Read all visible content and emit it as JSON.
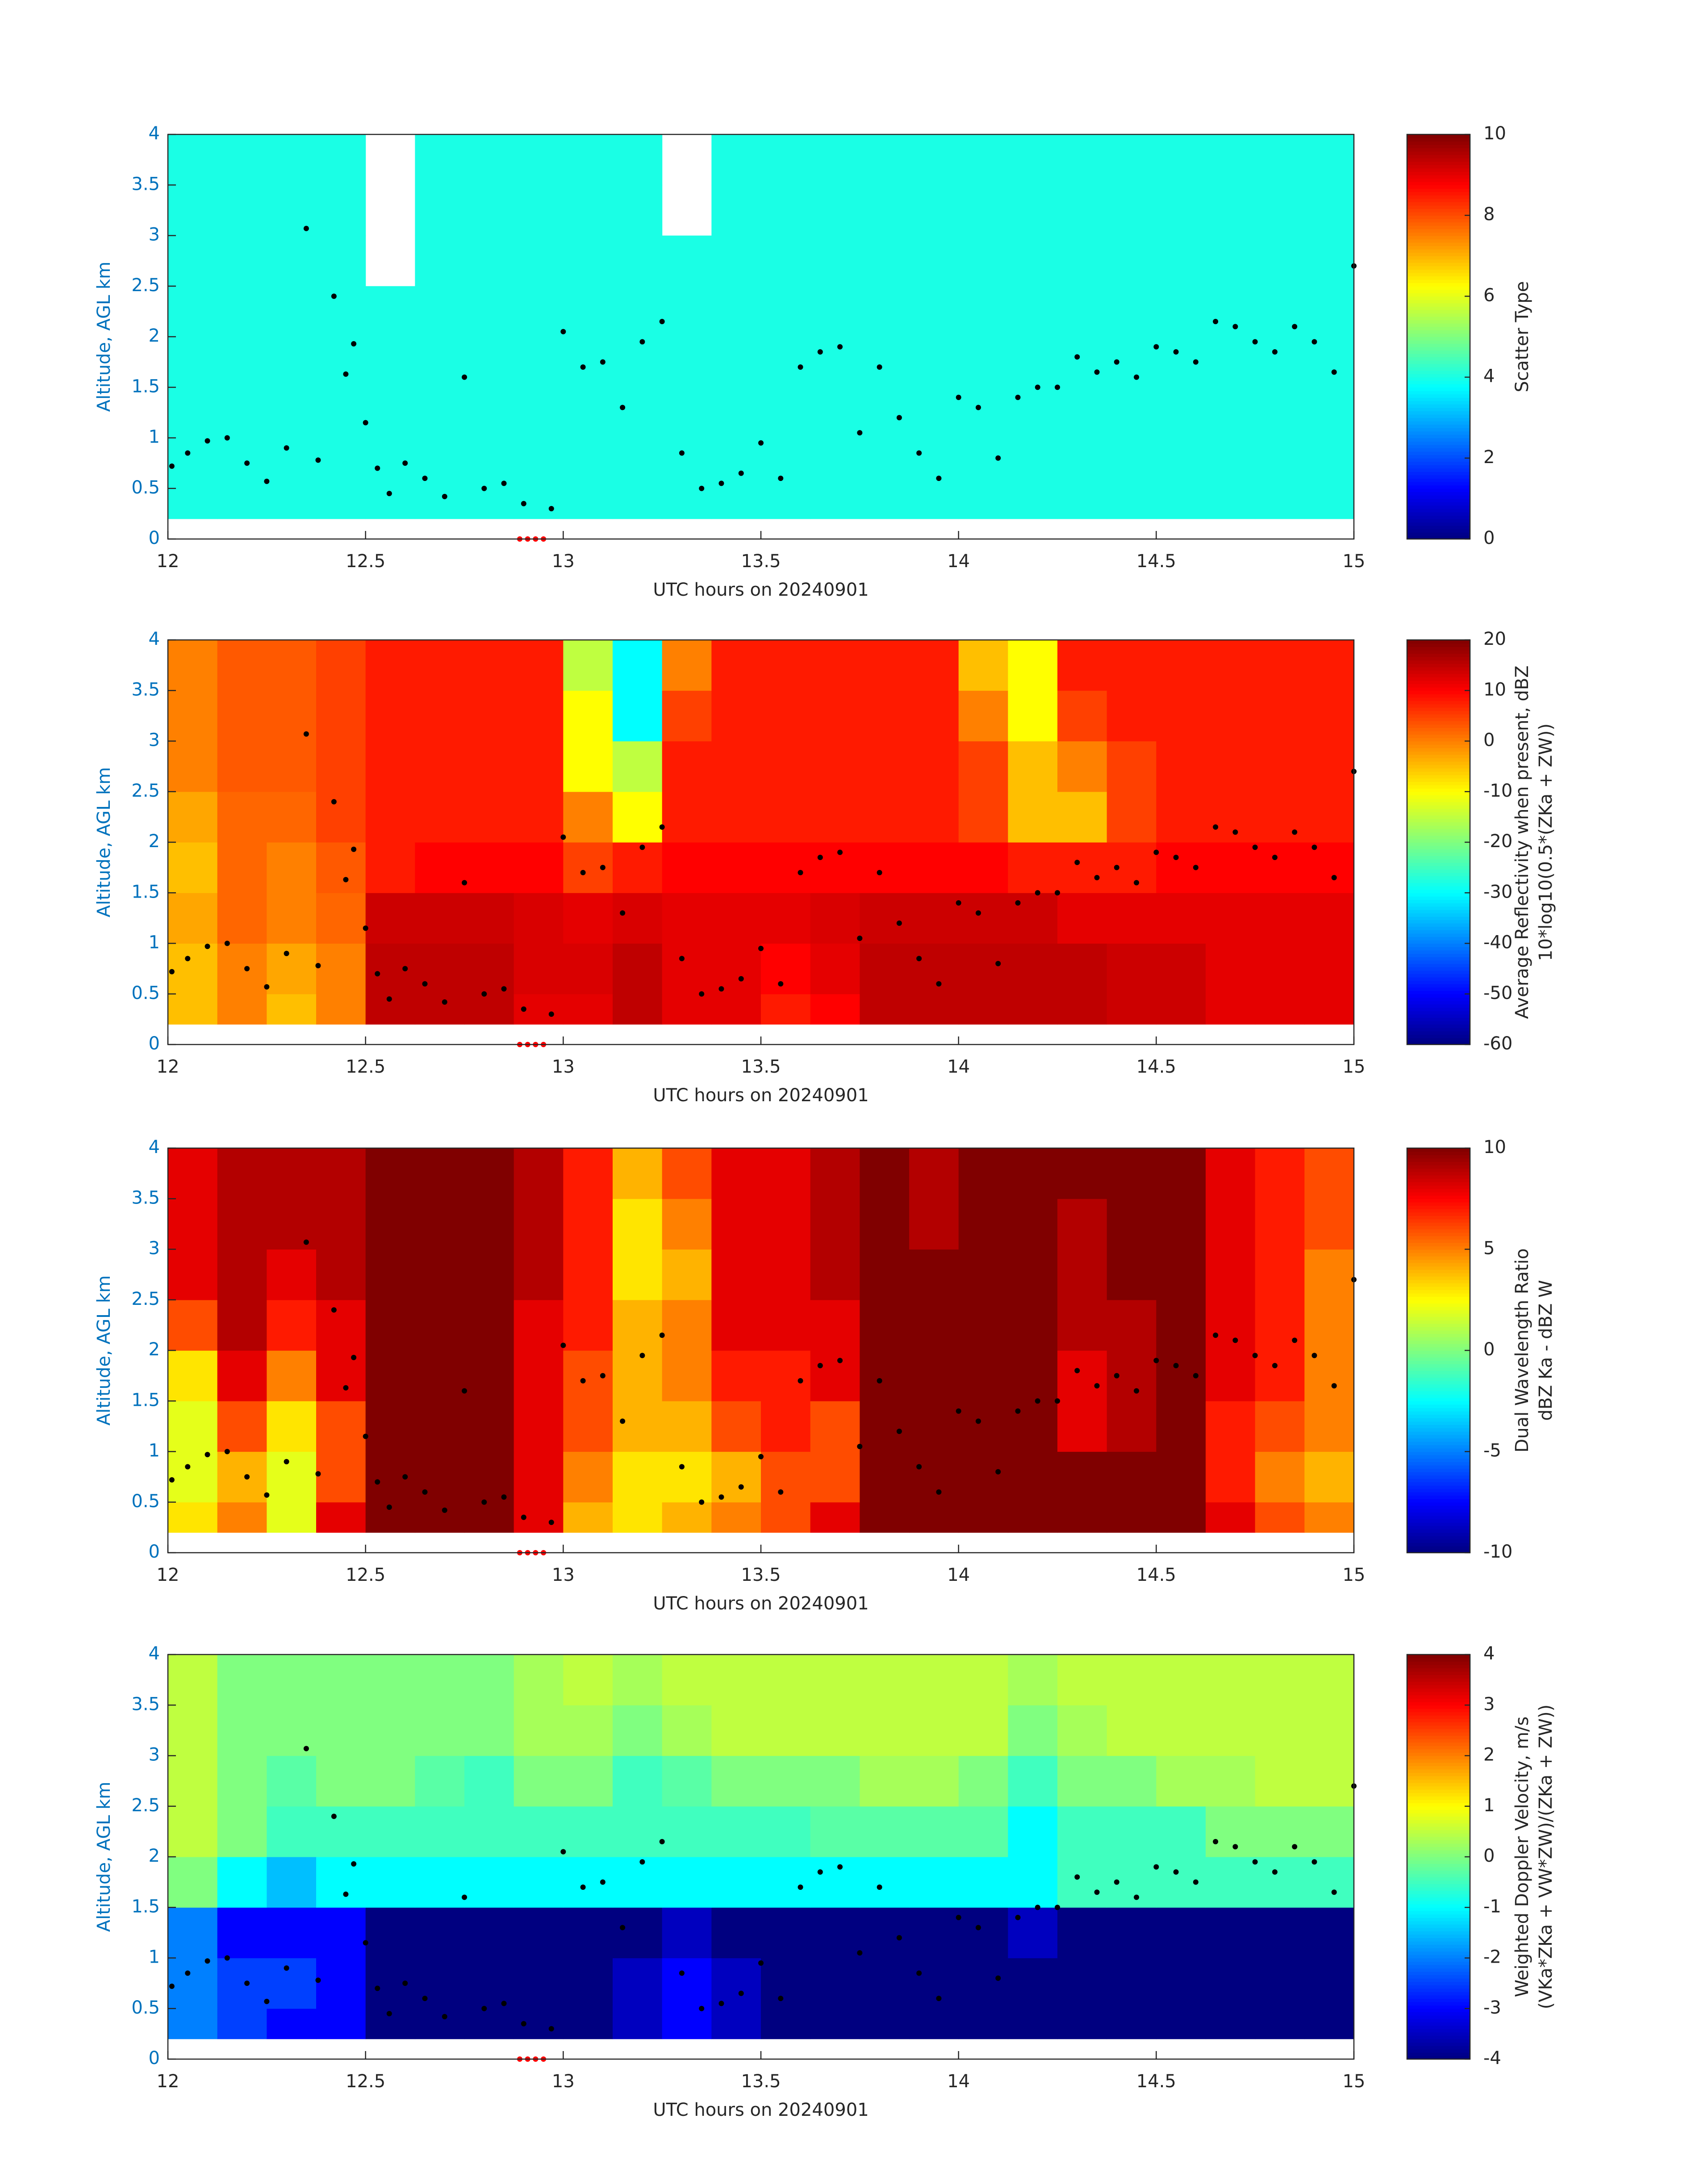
{
  "points": [
    {
      "color": "#000000",
      "x": [
        12.01,
        12.05,
        12.1,
        12.15,
        12.2,
        12.25,
        12.3,
        12.35,
        12.38,
        12.42,
        12.45,
        12.47,
        12.5,
        12.53,
        12.56,
        12.6,
        12.65,
        12.7,
        12.75,
        12.8,
        12.85,
        12.9,
        12.97,
        13.0,
        13.05,
        13.1,
        13.15,
        13.2,
        13.25,
        13.3,
        13.35,
        13.4,
        13.45,
        13.5,
        13.55,
        13.6,
        13.65,
        13.7,
        13.75,
        13.8,
        13.85,
        13.9,
        13.95,
        14.0,
        14.05,
        14.1,
        14.15,
        14.2,
        14.25,
        14.3,
        14.35,
        14.4,
        14.45,
        14.5,
        14.55,
        14.6,
        14.65,
        14.7,
        14.75,
        14.8,
        14.85,
        14.9,
        14.95,
        15.0
      ],
      "y": [
        0.72,
        0.85,
        0.97,
        1.0,
        0.75,
        0.57,
        0.9,
        3.07,
        0.78,
        2.4,
        1.63,
        1.93,
        1.15,
        0.7,
        0.45,
        0.75,
        0.6,
        0.42,
        1.6,
        0.5,
        0.55,
        0.35,
        0.3,
        2.05,
        1.7,
        1.75,
        1.3,
        1.95,
        2.15,
        0.85,
        0.5,
        0.55,
        0.65,
        0.95,
        0.6,
        1.7,
        1.85,
        1.9,
        1.05,
        1.7,
        1.2,
        0.85,
        0.6,
        1.4,
        1.3,
        0.8,
        1.4,
        1.5,
        1.5,
        1.8,
        1.65,
        1.75,
        1.6,
        1.9,
        1.85,
        1.75,
        2.15,
        2.1,
        1.95,
        1.85,
        2.1,
        1.95,
        1.65,
        2.7
      ]
    },
    {
      "color": "#ff0000",
      "x": [
        12.89,
        12.91,
        12.93,
        12.95
      ],
      "y": [
        0,
        0,
        0,
        0
      ]
    }
  ],
  "chart_data": [
    {
      "type": "heatmap",
      "colormap": "jet",
      "xlabel": "UTC hours on 20240901",
      "ylabel": "Altitude, AGL km",
      "colorbar_label": [
        "Scatter Type"
      ],
      "xlim": [
        12,
        15
      ],
      "xticks": [
        12,
        12.5,
        13,
        13.5,
        14,
        14.5,
        15
      ],
      "ylim": [
        0,
        4
      ],
      "yticks": [
        0,
        0.5,
        1,
        1.5,
        2,
        2.5,
        3,
        3.5,
        4
      ],
      "clim": [
        0,
        10
      ],
      "cticks": [
        0,
        2,
        4,
        6,
        8,
        10
      ],
      "x_edges": [
        12,
        12.125,
        12.25,
        12.375,
        12.5,
        12.625,
        12.75,
        12.875,
        13,
        13.125,
        13.25,
        13.375,
        13.5,
        13.625,
        13.75,
        13.875,
        14,
        14.125,
        14.25,
        14.375,
        14.5,
        14.625,
        14.75,
        14.875,
        15
      ],
      "y_edges": [
        0.2,
        0.5,
        1,
        1.5,
        2,
        2.5,
        3,
        3.5,
        4
      ],
      "values": [
        [
          4,
          4,
          4,
          4,
          4,
          4,
          4,
          4,
          4,
          4,
          4,
          4,
          4,
          4,
          4,
          4,
          4,
          4,
          4,
          4,
          4,
          4,
          4,
          4
        ],
        [
          4,
          4,
          4,
          4,
          4,
          4,
          4,
          4,
          4,
          4,
          4,
          4,
          4,
          4,
          4,
          4,
          4,
          4,
          4,
          4,
          4,
          4,
          4,
          4
        ],
        [
          4,
          4,
          4,
          4,
          4,
          4,
          4,
          4,
          4,
          4,
          4,
          4,
          4,
          4,
          4,
          4,
          4,
          4,
          4,
          4,
          4,
          4,
          4,
          4
        ],
        [
          4,
          4,
          4,
          4,
          4,
          4,
          4,
          4,
          4,
          4,
          4,
          4,
          4,
          4,
          4,
          4,
          4,
          4,
          4,
          4,
          4,
          4,
          4,
          4
        ],
        [
          4,
          4,
          4,
          4,
          4,
          4,
          4,
          4,
          4,
          4,
          4,
          4,
          4,
          4,
          4,
          4,
          4,
          4,
          4,
          4,
          4,
          4,
          4,
          4
        ],
        [
          4,
          4,
          4,
          4,
          null,
          4,
          4,
          4,
          4,
          4,
          4,
          4,
          4,
          4,
          4,
          4,
          4,
          4,
          4,
          4,
          4,
          4,
          4,
          4
        ],
        [
          4,
          4,
          4,
          4,
          null,
          4,
          4,
          4,
          4,
          4,
          null,
          4,
          4,
          4,
          4,
          4,
          4,
          4,
          4,
          4,
          4,
          4,
          4,
          4
        ],
        [
          4,
          4,
          4,
          4,
          null,
          4,
          4,
          4,
          4,
          4,
          null,
          4,
          4,
          4,
          4,
          4,
          4,
          4,
          4,
          4,
          4,
          4,
          4,
          4
        ]
      ]
    },
    {
      "type": "heatmap",
      "colormap": "jet",
      "xlabel": "UTC hours on 20240901",
      "ylabel": "Altitude, AGL km",
      "colorbar_label": [
        "Average Reflectivity when present, dBZ",
        "10*log10(0.5*(ZKa + ZW))"
      ],
      "xlim": [
        12,
        15
      ],
      "xticks": [
        12,
        12.5,
        13,
        13.5,
        14,
        14.5,
        15
      ],
      "ylim": [
        0,
        4
      ],
      "yticks": [
        0,
        0.5,
        1,
        1.5,
        2,
        2.5,
        3,
        3.5,
        4
      ],
      "clim": [
        -60,
        20
      ],
      "cticks": [
        -60,
        -50,
        -40,
        -30,
        -20,
        -10,
        0,
        10,
        20
      ],
      "x_edges": [
        12,
        12.125,
        12.25,
        12.375,
        12.5,
        12.625,
        12.75,
        12.875,
        13,
        13.125,
        13.25,
        13.375,
        13.5,
        13.625,
        13.75,
        13.875,
        14,
        14.125,
        14.25,
        14.375,
        14.5,
        14.625,
        14.75,
        14.875,
        15
      ],
      "y_edges": [
        0.2,
        0.5,
        1,
        1.5,
        2,
        2.5,
        3,
        3.5,
        4
      ],
      "values": [
        [
          -5,
          0,
          -5,
          0,
          15,
          15,
          15,
          12,
          12,
          15,
          12,
          12,
          8,
          10,
          15,
          15,
          15,
          15,
          15,
          14,
          14,
          12,
          12,
          12
        ],
        [
          -5,
          0,
          -3,
          0,
          15,
          15,
          15,
          13,
          13,
          15,
          12,
          12,
          10,
          12,
          15,
          15,
          15,
          15,
          15,
          14,
          14,
          12,
          12,
          12
        ],
        [
          -3,
          2,
          0,
          2,
          14,
          14,
          14,
          13,
          12,
          13,
          12,
          12,
          12,
          13,
          14,
          14,
          14,
          14,
          12,
          12,
          12,
          12,
          12,
          12
        ],
        [
          -5,
          2,
          0,
          3,
          8,
          10,
          10,
          10,
          5,
          8,
          10,
          10,
          10,
          10,
          10,
          10,
          10,
          8,
          8,
          8,
          10,
          10,
          10,
          10
        ],
        [
          -3,
          2,
          2,
          5,
          8,
          8,
          8,
          8,
          0,
          -10,
          8,
          8,
          8,
          8,
          8,
          8,
          5,
          -5,
          -5,
          5,
          8,
          8,
          8,
          8
        ],
        [
          0,
          3,
          3,
          5,
          8,
          8,
          8,
          8,
          -10,
          -15,
          8,
          8,
          8,
          8,
          8,
          8,
          5,
          -5,
          0,
          5,
          8,
          8,
          8,
          8
        ],
        [
          0,
          3,
          3,
          5,
          8,
          8,
          8,
          8,
          -10,
          -30,
          5,
          8,
          8,
          8,
          8,
          8,
          0,
          -10,
          5,
          8,
          8,
          8,
          8,
          8
        ],
        [
          0,
          3,
          3,
          5,
          8,
          8,
          8,
          8,
          -15,
          -30,
          0,
          8,
          8,
          8,
          8,
          8,
          -5,
          -10,
          8,
          8,
          8,
          8,
          8,
          8
        ]
      ]
    },
    {
      "type": "heatmap",
      "colormap": "jet",
      "xlabel": "UTC hours on 20240901",
      "ylabel": "Altitude, AGL km",
      "colorbar_label": [
        "Dual Wavelength Ratio",
        "dBZ Ka - dBZ W"
      ],
      "xlim": [
        12,
        15
      ],
      "xticks": [
        12,
        12.5,
        13,
        13.5,
        14,
        14.5,
        15
      ],
      "ylim": [
        0,
        4
      ],
      "yticks": [
        0,
        0.5,
        1,
        1.5,
        2,
        2.5,
        3,
        3.5,
        4
      ],
      "clim": [
        -10,
        10
      ],
      "cticks": [
        -10,
        -5,
        0,
        5,
        10
      ],
      "x_edges": [
        12,
        12.125,
        12.25,
        12.375,
        12.5,
        12.625,
        12.75,
        12.875,
        13,
        13.125,
        13.25,
        13.375,
        13.5,
        13.625,
        13.75,
        13.875,
        14,
        14.125,
        14.25,
        14.375,
        14.5,
        14.625,
        14.75,
        14.875,
        15
      ],
      "y_edges": [
        0.2,
        0.5,
        1,
        1.5,
        2,
        2.5,
        3,
        3.5,
        4
      ],
      "values": [
        [
          3,
          5,
          2,
          8,
          10,
          10,
          10,
          8,
          4,
          3,
          4,
          5,
          6,
          8,
          10,
          10,
          10,
          10,
          10,
          10,
          10,
          8,
          6,
          5
        ],
        [
          2,
          4,
          2,
          6,
          10,
          10,
          10,
          8,
          5,
          3,
          3,
          4,
          6,
          6,
          10,
          10,
          10,
          10,
          10,
          10,
          10,
          7,
          5,
          4
        ],
        [
          2,
          6,
          3,
          6,
          10,
          10,
          10,
          8,
          6,
          4,
          4,
          6,
          7,
          6,
          10,
          10,
          10,
          10,
          8,
          9,
          10,
          7,
          6,
          5
        ],
        [
          3,
          8,
          5,
          8,
          10,
          10,
          10,
          8,
          6,
          4,
          5,
          7,
          7,
          8,
          10,
          10,
          10,
          10,
          8,
          9,
          10,
          8,
          7,
          5
        ],
        [
          6,
          9,
          7,
          8,
          10,
          10,
          10,
          8,
          7,
          4,
          5,
          8,
          8,
          8,
          10,
          10,
          10,
          10,
          9,
          9,
          10,
          8,
          7,
          5
        ],
        [
          8,
          9,
          8,
          9,
          10,
          10,
          10,
          9,
          7,
          3,
          4,
          8,
          8,
          9,
          10,
          10,
          10,
          10,
          9,
          10,
          10,
          8,
          7,
          5
        ],
        [
          8,
          9,
          9,
          9,
          10,
          10,
          10,
          9,
          7,
          3,
          5,
          8,
          8,
          9,
          10,
          9,
          10,
          10,
          9,
          10,
          10,
          8,
          7,
          6
        ],
        [
          8,
          9,
          9,
          9,
          10,
          10,
          10,
          9,
          7,
          4,
          6,
          8,
          8,
          9,
          10,
          9,
          10,
          10,
          10,
          10,
          10,
          8,
          7,
          6
        ]
      ]
    },
    {
      "type": "heatmap",
      "colormap": "jet",
      "xlabel": "UTC hours on 20240901",
      "ylabel": "Altitude, AGL km",
      "colorbar_label": [
        "Weighted Doppler Velocity, m/s",
        "(VKa*ZKa + VW*ZW)/(ZKa + ZW))"
      ],
      "xlim": [
        12,
        15
      ],
      "xticks": [
        12,
        12.5,
        13,
        13.5,
        14,
        14.5,
        15
      ],
      "ylim": [
        0,
        4
      ],
      "yticks": [
        0,
        0.5,
        1,
        1.5,
        2,
        2.5,
        3,
        3.5,
        4
      ],
      "clim": [
        -4,
        4
      ],
      "cticks": [
        -4,
        -3,
        -2,
        -1,
        0,
        1,
        2,
        3,
        4
      ],
      "x_edges": [
        12,
        12.125,
        12.25,
        12.375,
        12.5,
        12.625,
        12.75,
        12.875,
        13,
        13.125,
        13.25,
        13.375,
        13.5,
        13.625,
        13.75,
        13.875,
        14,
        14.125,
        14.25,
        14.375,
        14.5,
        14.625,
        14.75,
        14.875,
        15
      ],
      "y_edges": [
        0.2,
        0.5,
        1,
        1.5,
        2,
        2.5,
        3,
        3.5,
        4
      ],
      "values": [
        [
          -2,
          -2.5,
          -3,
          -3,
          -4,
          -4,
          -4,
          -4,
          -4,
          -3.5,
          -3,
          -3.5,
          -4,
          -4,
          -4,
          -4,
          -4,
          -4,
          -4,
          -4,
          -4,
          -4,
          -4,
          -4
        ],
        [
          -2,
          -2.5,
          -2.5,
          -3,
          -4,
          -4,
          -4,
          -4,
          -4,
          -3.5,
          -3,
          -3.5,
          -4,
          -4,
          -4,
          -4,
          -4,
          -4,
          -4,
          -4,
          -4,
          -4,
          -4,
          -4
        ],
        [
          -2,
          -3,
          -3,
          -3,
          -4,
          -4,
          -4,
          -4,
          -4,
          -4,
          -3.5,
          -4,
          -4,
          -4,
          -4,
          -4,
          -4,
          -3.5,
          -4,
          -4,
          -4,
          -4,
          -4,
          -4
        ],
        [
          0,
          -1,
          -1.5,
          -1,
          -1,
          -1,
          -1,
          -1,
          -1,
          -1,
          -1,
          -1,
          -1,
          -1,
          -1,
          -1,
          -1,
          -1,
          -0.5,
          -0.5,
          -0.5,
          -0.5,
          -0.5,
          -0.5
        ],
        [
          0.5,
          0,
          -0.5,
          -0.5,
          -0.5,
          -0.5,
          -0.5,
          -0.5,
          -0.5,
          -0.5,
          -0.5,
          -0.5,
          -0.5,
          -0.3,
          -0.3,
          -0.3,
          -0.3,
          -1,
          -0.5,
          -0.5,
          -0.5,
          0,
          0,
          0
        ],
        [
          0.5,
          0,
          -0.3,
          0,
          0,
          -0.3,
          -0.5,
          0,
          0,
          -0.5,
          -0.3,
          0,
          0,
          0,
          0.3,
          0.3,
          0,
          -0.5,
          0,
          0,
          0.3,
          0.3,
          0.5,
          0.5
        ],
        [
          0.5,
          0,
          0,
          0,
          0,
          0,
          0,
          0.3,
          0.3,
          0,
          0.3,
          0.5,
          0.5,
          0.5,
          0.5,
          0.5,
          0.5,
          0,
          0.3,
          0.5,
          0.5,
          0.5,
          0.5,
          0.5
        ],
        [
          0.5,
          0,
          0,
          0,
          0,
          0,
          0,
          0.3,
          0.5,
          0.3,
          0.5,
          0.5,
          0.5,
          0.5,
          0.5,
          0.5,
          0.5,
          0.3,
          0.5,
          0.5,
          0.5,
          0.5,
          0.5,
          0.5
        ]
      ]
    }
  ]
}
